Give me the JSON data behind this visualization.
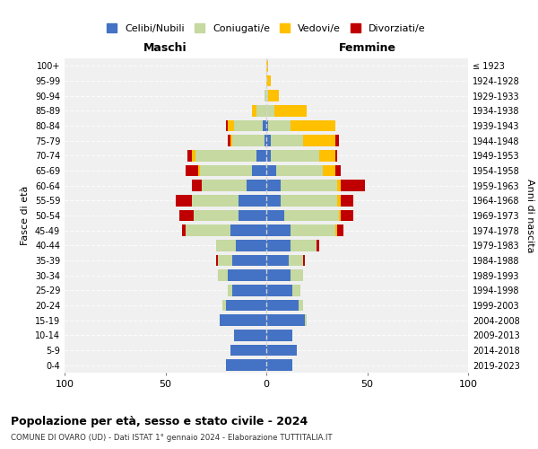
{
  "age_groups": [
    "0-4",
    "5-9",
    "10-14",
    "15-19",
    "20-24",
    "25-29",
    "30-34",
    "35-39",
    "40-44",
    "45-49",
    "50-54",
    "55-59",
    "60-64",
    "65-69",
    "70-74",
    "75-79",
    "80-84",
    "85-89",
    "90-94",
    "95-99",
    "100+"
  ],
  "birth_years": [
    "2019-2023",
    "2014-2018",
    "2009-2013",
    "2004-2008",
    "1999-2003",
    "1994-1998",
    "1989-1993",
    "1984-1988",
    "1979-1983",
    "1974-1978",
    "1969-1973",
    "1964-1968",
    "1959-1963",
    "1954-1958",
    "1949-1953",
    "1944-1948",
    "1939-1943",
    "1934-1938",
    "1929-1933",
    "1924-1928",
    "≤ 1923"
  ],
  "males": {
    "celibi": [
      20,
      18,
      16,
      23,
      20,
      17,
      19,
      17,
      15,
      18,
      14,
      14,
      10,
      7,
      5,
      1,
      2,
      0,
      0,
      0,
      0
    ],
    "coniugati": [
      0,
      0,
      0,
      0,
      2,
      2,
      5,
      7,
      10,
      22,
      22,
      23,
      22,
      26,
      30,
      16,
      14,
      5,
      1,
      0,
      0
    ],
    "vedovi": [
      0,
      0,
      0,
      0,
      0,
      0,
      0,
      0,
      0,
      0,
      0,
      0,
      0,
      1,
      2,
      1,
      3,
      2,
      0,
      0,
      0
    ],
    "divorziati": [
      0,
      0,
      0,
      0,
      0,
      0,
      0,
      1,
      0,
      2,
      7,
      8,
      5,
      6,
      2,
      1,
      1,
      0,
      0,
      0,
      0
    ]
  },
  "females": {
    "nubili": [
      13,
      15,
      13,
      19,
      16,
      13,
      12,
      11,
      12,
      12,
      9,
      7,
      7,
      5,
      2,
      2,
      1,
      0,
      0,
      0,
      0
    ],
    "coniugate": [
      0,
      0,
      0,
      1,
      2,
      4,
      6,
      7,
      13,
      22,
      27,
      28,
      28,
      23,
      24,
      16,
      11,
      4,
      1,
      0,
      0
    ],
    "vedove": [
      0,
      0,
      0,
      0,
      0,
      0,
      0,
      0,
      0,
      1,
      1,
      2,
      2,
      6,
      8,
      16,
      22,
      16,
      5,
      2,
      1
    ],
    "divorziate": [
      0,
      0,
      0,
      0,
      0,
      0,
      0,
      1,
      1,
      3,
      6,
      6,
      12,
      3,
      1,
      2,
      0,
      0,
      0,
      0,
      0
    ]
  },
  "colors": {
    "celibi_nubili": "#4472c4",
    "coniugati_e": "#c5d9a0",
    "vedovi_e": "#ffc000",
    "divorziati_e": "#c00000"
  },
  "title1": "Popolazione per età, sesso e stato civile - 2024",
  "title2": "COMUNE DI OVARO (UD) - Dati ISTAT 1° gennaio 2024 - Elaborazione TUTTITALIA.IT",
  "xlabel_left": "Maschi",
  "xlabel_right": "Femmine",
  "ylabel_left": "Fasce di età",
  "ylabel_right": "Anni di nascita",
  "xlim": 100,
  "legend_labels": [
    "Celibi/Nubili",
    "Coniugati/e",
    "Vedovi/e",
    "Divorziati/e"
  ],
  "background_color": "#ffffff",
  "plot_bg": "#f0f0f0"
}
